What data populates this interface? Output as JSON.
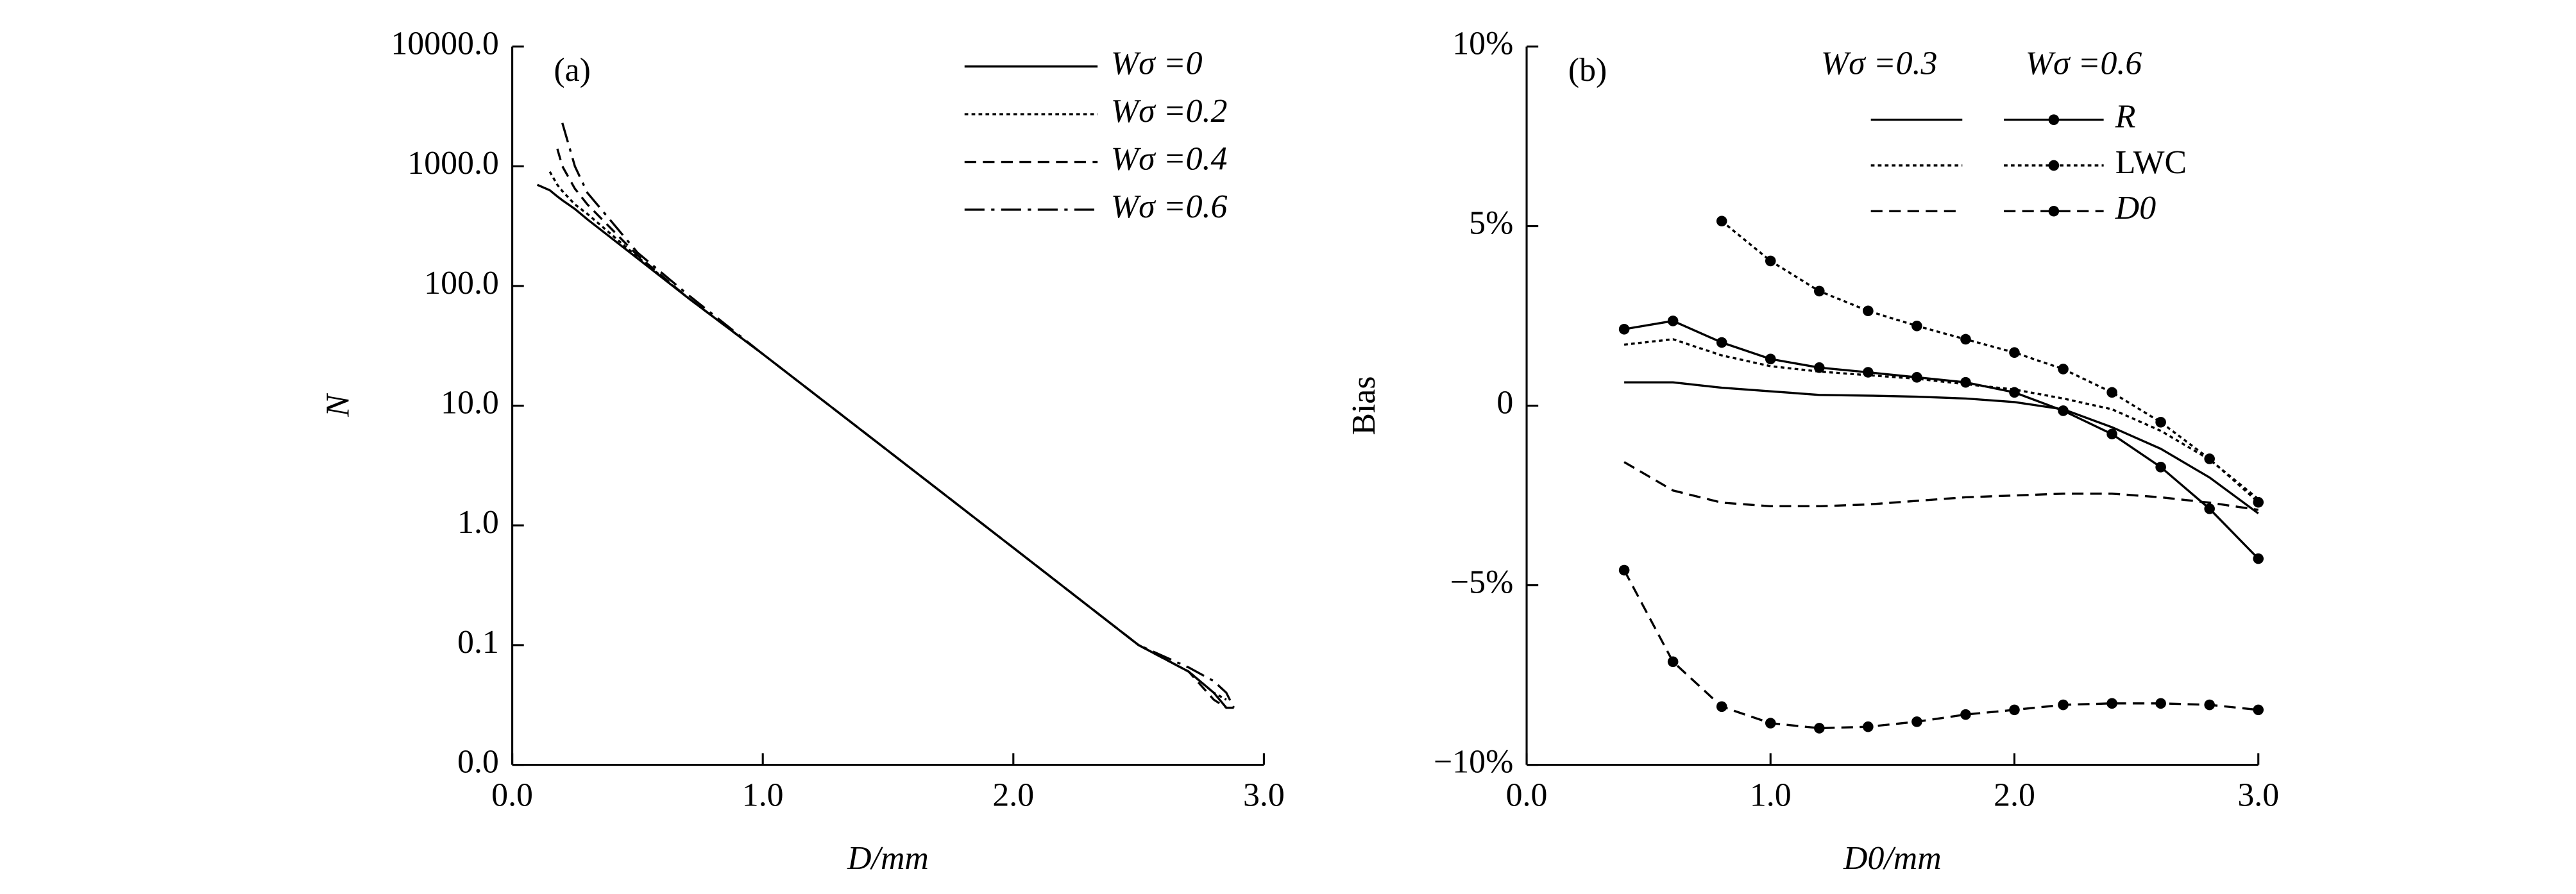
{
  "chart_data": [
    {
      "type": "line",
      "panel_label": "(a)",
      "x_label": "D/mm",
      "y_label": "N",
      "y_log": true,
      "color": "#000000",
      "x": [
        0.1,
        0.15,
        0.18,
        0.2,
        0.25,
        0.3,
        0.5,
        0.7,
        1.0,
        1.5,
        2.0,
        2.5,
        2.7,
        2.8,
        2.85,
        2.88
      ],
      "series": [
        {
          "name": "Wσ =0",
          "dash": "solid",
          "values": [
            700,
            630,
            560,
            520,
            440,
            360,
            170,
            80,
            27,
            4.2,
            0.65,
            0.1,
            0.06,
            0.04,
            0.03,
            null
          ]
        },
        {
          "name": "Wσ =0.2",
          "dash": "dotted",
          "values": [
            null,
            900,
            700,
            620,
            480,
            400,
            175,
            80,
            27,
            4.2,
            0.65,
            0.1,
            0.06,
            0.04,
            0.035,
            null
          ]
        },
        {
          "name": "Wσ =0.4",
          "dash": "dashed",
          "values": [
            null,
            null,
            1400,
            1000,
            650,
            480,
            180,
            80,
            27,
            4.2,
            0.65,
            0.1,
            0.06,
            0.035,
            0.03,
            0.03
          ]
        },
        {
          "name": "Wσ =0.6",
          "dash": "dashdot",
          "values": [
            null,
            null,
            null,
            2300,
            1000,
            600,
            190,
            85,
            27,
            4.2,
            0.65,
            0.1,
            0.065,
            0.05,
            0.04,
            0.03
          ]
        }
      ],
      "xlim": [
        0,
        3
      ],
      "xticks": [
        {
          "value": 0,
          "label": "0.0"
        },
        {
          "value": 1,
          "label": "1.0"
        },
        {
          "value": 2,
          "label": "2.0"
        },
        {
          "value": 3,
          "label": "3.0"
        }
      ],
      "ylim": [
        0.01,
        10000
      ],
      "yticks": [
        {
          "value": 0.01,
          "label": "0.0"
        },
        {
          "value": 0.1,
          "label": "0.1"
        },
        {
          "value": 1,
          "label": "1.0"
        },
        {
          "value": 10,
          "label": "10.0"
        },
        {
          "value": 100,
          "label": "100.0"
        },
        {
          "value": 1000,
          "label": "1000.0"
        },
        {
          "value": 10000,
          "label": "10000.0"
        }
      ]
    },
    {
      "type": "line",
      "panel_label": "(b)",
      "x_label": "D0/mm",
      "y_label": "Bias",
      "y_log": false,
      "color": "#000000",
      "legend_columns": [
        "Wσ =0.3",
        "Wσ =0.6"
      ],
      "markers": [
        false,
        true
      ],
      "x": [
        0.4,
        0.6,
        0.8,
        1.0,
        1.2,
        1.4,
        1.6,
        1.8,
        2.0,
        2.2,
        2.4,
        2.6,
        2.8,
        3.0
      ],
      "series": [
        {
          "name": "R",
          "dash": "solid",
          "variants": [
            [
              0.65,
              0.65,
              0.5,
              0.4,
              0.3,
              0.28,
              0.25,
              0.2,
              0.1,
              -0.1,
              -0.6,
              -1.2,
              -2.0,
              -3.0
            ],
            [
              2.13,
              2.36,
              1.76,
              1.3,
              1.06,
              0.93,
              0.79,
              0.65,
              0.37,
              -0.14,
              -0.79,
              -1.71,
              -2.87,
              -4.26
            ]
          ]
        },
        {
          "name": "LWC",
          "dash": "dotted",
          "variants": [
            [
              1.7,
              1.85,
              1.4,
              1.1,
              0.95,
              0.85,
              0.75,
              0.6,
              0.45,
              0.2,
              -0.1,
              -0.7,
              -1.5,
              -2.6
            ],
            [
              null,
              null,
              5.14,
              4.03,
              3.19,
              2.64,
              2.22,
              1.85,
              1.48,
              1.02,
              0.37,
              -0.46,
              -1.48,
              -2.69
            ]
          ]
        },
        {
          "name": "D0",
          "dash": "dashed",
          "variants": [
            [
              -1.57,
              -2.36,
              -2.7,
              -2.8,
              -2.8,
              -2.75,
              -2.65,
              -2.55,
              -2.5,
              -2.45,
              -2.45,
              -2.55,
              -2.7,
              -2.9
            ],
            [
              -4.58,
              -7.13,
              -8.38,
              -8.84,
              -8.98,
              -8.94,
              -8.8,
              -8.6,
              -8.47,
              -8.33,
              -8.29,
              -8.29,
              -8.33,
              -8.47
            ]
          ]
        }
      ],
      "xlim": [
        0,
        3
      ],
      "xticks": [
        {
          "value": 0,
          "label": "0.0"
        },
        {
          "value": 1,
          "label": "1.0"
        },
        {
          "value": 2,
          "label": "2.0"
        },
        {
          "value": 3,
          "label": "3.0"
        }
      ],
      "ylim": [
        -10,
        10
      ],
      "yticks": [
        {
          "value": 10,
          "label": "10%"
        },
        {
          "value": 5,
          "label": "5%"
        },
        0,
        {
          "value": -5,
          "label": "−5%"
        },
        {
          "value": -10,
          "label": "−10%"
        }
      ]
    }
  ]
}
